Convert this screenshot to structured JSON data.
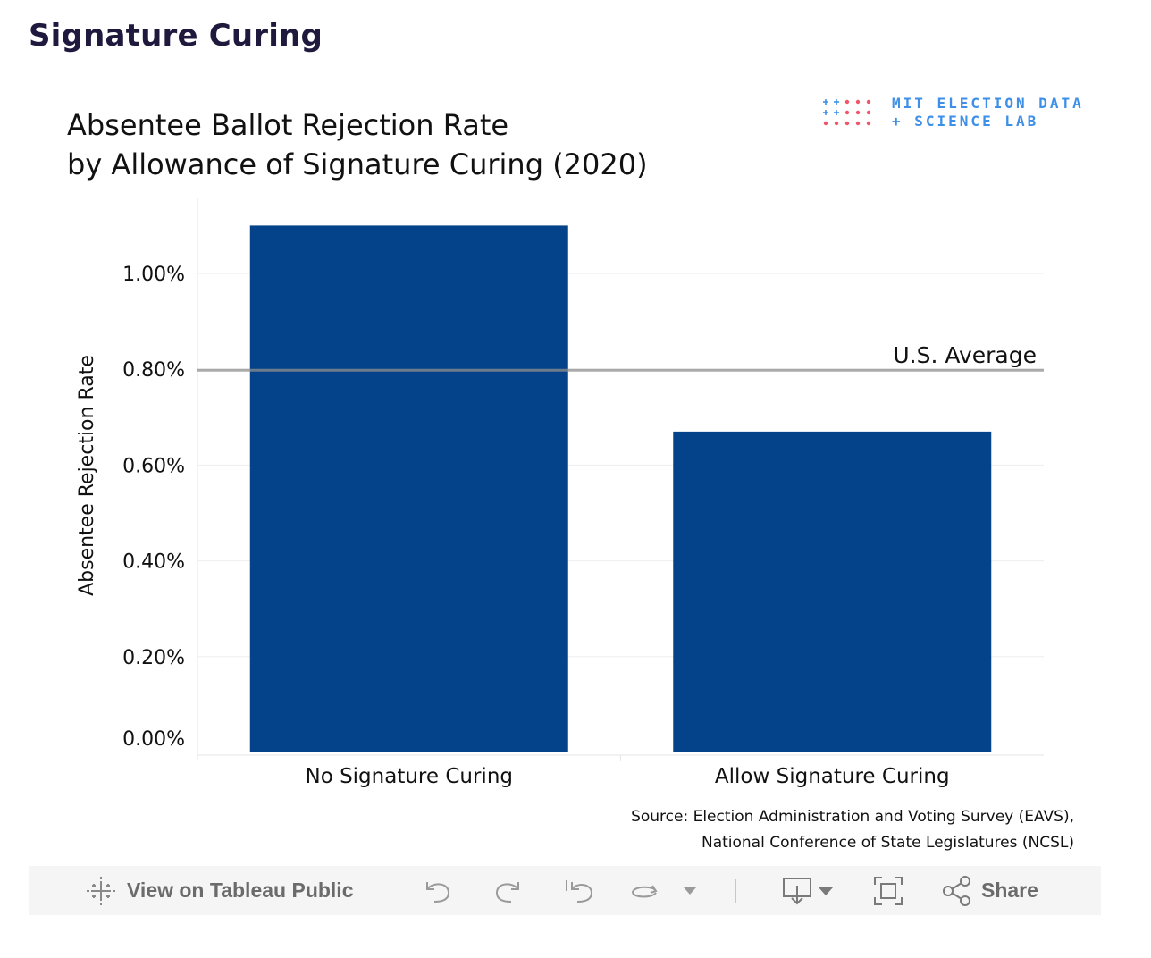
{
  "page": {
    "title": "Signature Curing"
  },
  "logo": {
    "line1": "MIT ELECTION DATA",
    "line2": "+ SCIENCE LAB",
    "dot_color_blue": "#3d8fe8",
    "dot_color_red": "#f0566b"
  },
  "chart_data": {
    "type": "bar",
    "title_lines": [
      "Absentee Ballot Rejection Rate",
      "by Allowance of Signature Curing (2020)"
    ],
    "categories": [
      "No Signature Curing",
      "Allow Signature Curing"
    ],
    "values": [
      1.1,
      0.67
    ],
    "ylabel": "Absentee Rejection Rate",
    "xlabel": "",
    "ylim": [
      0,
      1.15
    ],
    "yticks": [
      0,
      0.2,
      0.4,
      0.6,
      0.8,
      1.0
    ],
    "ytick_labels": [
      "0.00%",
      "0.20%",
      "0.40%",
      "0.60%",
      "0.80%",
      "1.00%"
    ],
    "reference_line": {
      "value": 0.8,
      "label": "U.S. Average",
      "color": "#9b9b9b"
    },
    "bar_color": "#044389",
    "grid": true
  },
  "source": {
    "line1": "Source: Election Administration and Voting Survey (EAVS),",
    "line2": "National Conference of State Legislatures (NCSL)"
  },
  "toolbar": {
    "view_label": "View on Tableau Public",
    "share_label": "Share",
    "icons": [
      "tableau-icon",
      "undo-icon",
      "redo-icon",
      "revert-icon",
      "refresh-icon",
      "dropdown-icon",
      "download-icon",
      "fullscreen-icon",
      "share-icon"
    ]
  }
}
